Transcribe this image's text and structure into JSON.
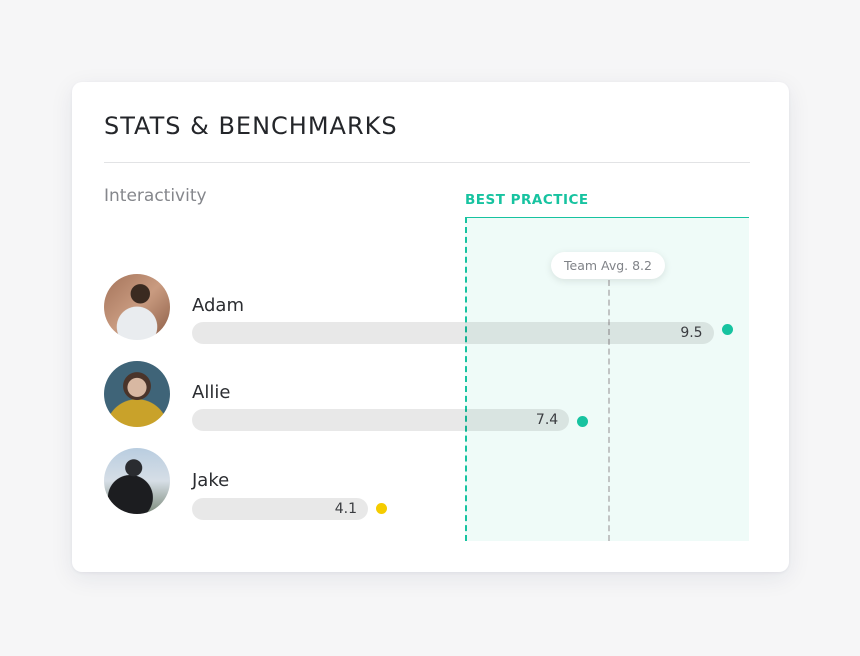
{
  "card": {
    "title": "STATS & BENCHMARKS",
    "metric": "Interactivity"
  },
  "chart_data": {
    "type": "bar",
    "orientation": "horizontal",
    "title": "STATS & BENCHMARKS",
    "subtitle": "Interactivity",
    "categories": [
      "Adam",
      "Allie",
      "Jake"
    ],
    "values": [
      9.5,
      7.4,
      4.1
    ],
    "value_labels": [
      "9.5",
      "7.4",
      "4.1"
    ],
    "status_colors": [
      "#17c3a0",
      "#17c3a0",
      "#f5cc00"
    ],
    "best_practice": {
      "label": "BEST PRACTICE",
      "from": 5.6,
      "color": "#17c3a0"
    },
    "team_average": {
      "label": "Team Avg. 8.2",
      "value": 8.2
    }
  }
}
